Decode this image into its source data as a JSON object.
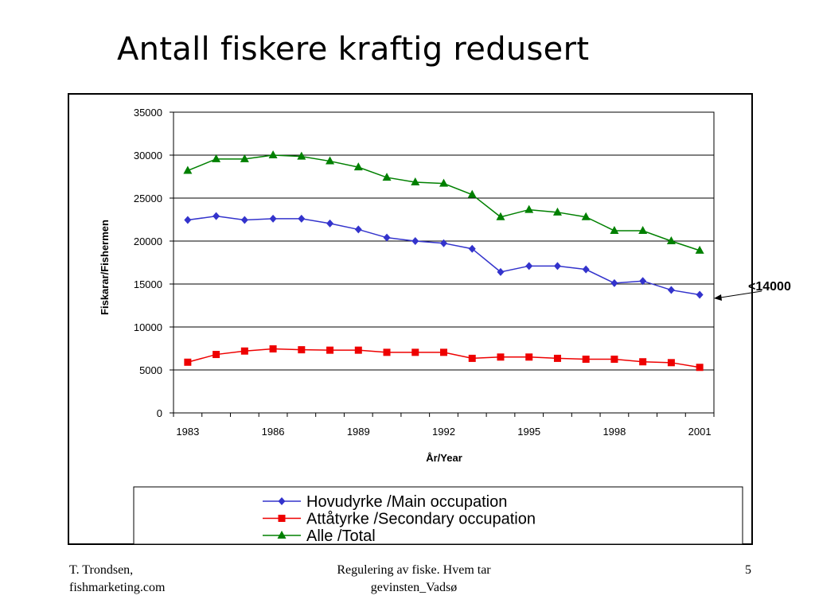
{
  "slide": {
    "title": "Antall fiskere kraftig redusert",
    "footer_left_line1": "T. Trondsen,",
    "footer_left_line2": "fishmarketing.com",
    "footer_center_line1": "Regulering av fiske. Hvem tar",
    "footer_center_line2": "gevinsten_Vadsø",
    "page_number": "5"
  },
  "chart_data": {
    "type": "line",
    "title": "",
    "xlabel": "År/Year",
    "ylabel": "Fiskarar/Fishermen",
    "ylim": [
      0,
      35000
    ],
    "yticks": [
      0,
      5000,
      10000,
      15000,
      20000,
      25000,
      30000,
      35000
    ],
    "x": [
      1983,
      1984,
      1985,
      1986,
      1987,
      1988,
      1989,
      1990,
      1991,
      1992,
      1993,
      1994,
      1995,
      1996,
      1997,
      1998,
      1999,
      2000,
      2001
    ],
    "xtick_labels": [
      "1983",
      "1986",
      "1989",
      "1992",
      "1995",
      "1998",
      "2001"
    ],
    "grid": true,
    "legend_position": "bottom",
    "annotation": "<14000",
    "series": [
      {
        "name": "Hovudyrke /Main occupation",
        "color": "#3333cc",
        "marker": "diamond",
        "values": [
          22450,
          22900,
          22450,
          22600,
          22600,
          22050,
          21350,
          20400,
          20000,
          19750,
          19100,
          16400,
          17100,
          17100,
          16700,
          15100,
          15350,
          14300,
          13750
        ]
      },
      {
        "name": "Attåtyrke /Secondary occupation",
        "color": "#ee0000",
        "marker": "square",
        "values": [
          5900,
          6800,
          7200,
          7450,
          7350,
          7300,
          7300,
          7050,
          7050,
          7050,
          6350,
          6500,
          6500,
          6350,
          6250,
          6250,
          5950,
          5850,
          5300
        ]
      },
      {
        "name": "Alle /Total",
        "color": "#008000",
        "marker": "triangle",
        "values": [
          28200,
          29550,
          29550,
          30000,
          29850,
          29300,
          28600,
          27400,
          26850,
          26700,
          25400,
          22800,
          23650,
          23350,
          22800,
          21200,
          21200,
          20000,
          18900
        ]
      }
    ]
  }
}
